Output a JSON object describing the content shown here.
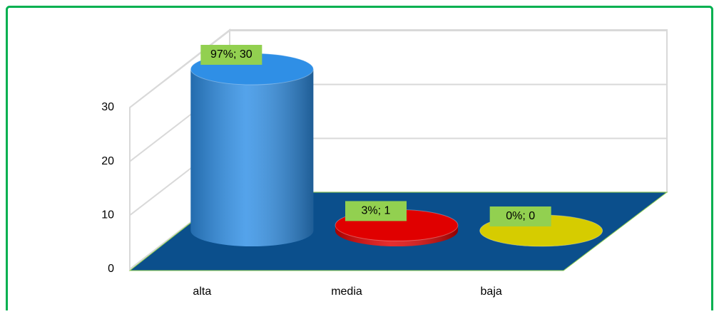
{
  "chart_data": {
    "type": "cylinder",
    "categories": [
      "alta",
      "media",
      "baja"
    ],
    "values": [
      30,
      1,
      0
    ],
    "value_labels": [
      "97%; 30",
      "3%; 1",
      "0%; 0"
    ],
    "colors": [
      "#2f8fe6",
      "#e00000",
      "#d6cc00"
    ],
    "ylim": [
      0,
      30
    ],
    "yticks": [
      0,
      10,
      20,
      30
    ],
    "grid": true
  }
}
